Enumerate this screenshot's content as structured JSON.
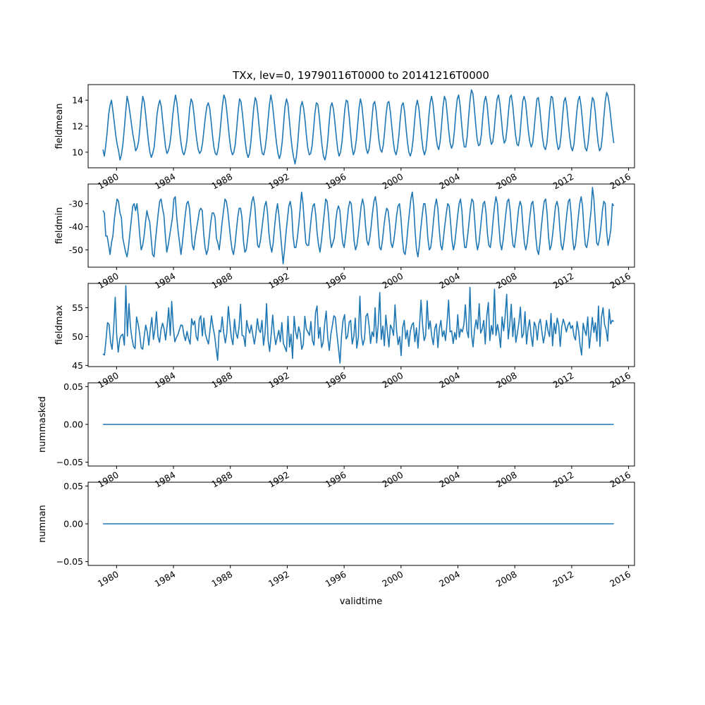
{
  "title": "TXx, lev=0, 19790116T0000 to 20141216T0000",
  "xlabel": "validtime",
  "line_color": "#1f77b4",
  "chart_data": [
    {
      "type": "line",
      "ylabel": "fieldmean",
      "xlim": [
        "1978-01-01",
        "2016-06-01"
      ],
      "ylim": [
        8.8,
        15.2
      ],
      "yticks": [
        10,
        12,
        14
      ],
      "xticks": [
        "1980",
        "1984",
        "1988",
        "1992",
        "1996",
        "2000",
        "2004",
        "2008",
        "2012",
        "2016"
      ],
      "x_range": [
        "1979-01-16",
        "2014-12-16"
      ],
      "values": [
        10.2,
        9.7,
        10.5,
        11.6,
        12.9,
        13.6,
        14.0,
        13.2,
        12.3,
        11.3,
        10.6,
        10.1,
        9.4,
        9.8,
        10.6,
        11.8,
        13.1,
        14.3,
        13.8,
        13.0,
        12.2,
        11.4,
        10.8,
        10.1,
        10.3,
        10.8,
        11.9,
        13.3,
        14.3,
        13.9,
        12.9,
        11.8,
        10.8,
        10.0,
        9.6,
        9.9,
        10.4,
        11.6,
        12.9,
        13.6,
        14.0,
        13.5,
        12.4,
        11.4,
        10.4,
        9.9,
        10.1,
        10.6,
        11.5,
        12.8,
        13.7,
        14.4,
        13.8,
        12.7,
        11.5,
        10.6,
        10.0,
        9.8,
        10.2,
        10.9,
        12.1,
        13.4,
        14.1,
        13.8,
        12.9,
        11.8,
        10.9,
        10.2,
        9.9,
        10.1,
        10.7,
        11.7,
        12.7,
        13.5,
        13.8,
        13.4,
        12.4,
        11.3,
        10.4,
        9.9,
        9.8,
        10.3,
        11.2,
        12.4,
        13.6,
        14.4,
        14.1,
        13.2,
        12.1,
        11.0,
        10.2,
        9.8,
        10.0,
        10.6,
        11.8,
        13.1,
        14.1,
        13.9,
        13.0,
        11.9,
        10.8,
        10.0,
        9.6,
        9.9,
        10.8,
        12.1,
        13.4,
        14.2,
        13.9,
        12.9,
        11.7,
        10.6,
        9.9,
        9.8,
        10.3,
        11.2,
        12.4,
        13.6,
        14.4,
        13.8,
        12.8,
        11.7,
        10.7,
        9.9,
        9.5,
        9.9,
        10.8,
        12.2,
        13.5,
        14.1,
        13.7,
        12.5,
        11.3,
        10.3,
        9.6,
        9.1,
        9.7,
        10.8,
        12.3,
        13.5,
        13.9,
        13.4,
        12.5,
        11.3,
        10.3,
        9.8,
        9.9,
        10.5,
        11.7,
        13.0,
        13.8,
        13.7,
        12.8,
        11.6,
        10.5,
        9.7,
        9.4,
        9.9,
        10.9,
        12.3,
        13.5,
        13.8,
        13.3,
        12.3,
        11.2,
        10.2,
        9.7,
        10.0,
        10.8,
        12.0,
        13.3,
        14.0,
        13.9,
        12.8,
        11.5,
        10.4,
        9.8,
        10.1,
        10.9,
        12.1,
        13.4,
        14.1,
        13.6,
        12.5,
        11.3,
        10.3,
        9.9,
        10.2,
        11.1,
        12.5,
        13.7,
        13.9,
        13.2,
        12.0,
        10.9,
        10.2,
        10.0,
        10.5,
        11.6,
        12.9,
        13.8,
        13.9,
        13.1,
        12.0,
        10.9,
        10.1,
        9.8,
        10.3,
        11.3,
        12.6,
        13.6,
        13.8,
        13.1,
        11.9,
        10.8,
        10.0,
        9.7,
        10.1,
        11.0,
        12.3,
        13.5,
        14.0,
        13.4,
        12.3,
        11.1,
        10.2,
        9.8,
        10.2,
        11.3,
        12.7,
        13.8,
        14.3,
        13.7,
        12.5,
        11.3,
        10.5,
        10.2,
        10.8,
        12.1,
        13.5,
        14.3,
        14.0,
        12.9,
        11.7,
        10.7,
        10.3,
        10.6,
        11.6,
        13.0,
        14.1,
        14.4,
        13.6,
        12.3,
        11.1,
        10.4,
        10.4,
        11.2,
        12.7,
        14.0,
        14.8,
        14.5,
        13.4,
        12.1,
        11.0,
        10.5,
        10.6,
        11.4,
        12.8,
        13.9,
        14.3,
        13.7,
        12.4,
        11.2,
        10.6,
        10.8,
        11.7,
        13.0,
        14.1,
        14.4,
        13.7,
        12.6,
        11.4,
        10.7,
        10.9,
        11.8,
        13.1,
        14.2,
        14.4,
        13.6,
        12.4,
        11.3,
        10.6,
        10.5,
        11.2,
        12.6,
        13.9,
        14.3,
        13.9,
        12.8,
        11.6,
        10.8,
        10.4,
        10.7,
        11.7,
        13.0,
        14.1,
        14.2,
        13.4,
        12.2,
        11.1,
        10.4,
        10.2,
        10.7,
        11.9,
        13.3,
        14.3,
        14.2,
        13.2,
        11.9,
        10.8,
        10.2,
        10.4,
        11.3,
        12.7,
        13.9,
        14.2,
        13.5,
        12.3,
        11.2,
        10.4,
        10.1,
        10.6,
        11.8,
        13.1,
        14.0,
        14.3,
        13.6,
        12.4,
        11.2,
        10.3,
        10.1,
        10.7,
        11.9,
        13.3,
        14.2,
        14.0,
        13.1,
        11.8,
        10.7,
        10.1,
        10.3,
        11.2,
        12.6,
        13.9,
        14.6,
        14.3,
        13.6,
        12.6,
        11.6,
        10.7
      ]
    },
    {
      "type": "line",
      "ylabel": "fieldmin",
      "xlim": [
        "1978-01-01",
        "2016-06-01"
      ],
      "ylim": [
        -57.5,
        -21.5
      ],
      "yticks": [
        -50,
        -40,
        -30
      ],
      "xticks": [
        "1980",
        "1984",
        "1988",
        "1992",
        "1996",
        "2000",
        "2004",
        "2008",
        "2012",
        "2016"
      ],
      "x_range": [
        "1979-01-16",
        "2014-12-16"
      ],
      "values": [
        -33,
        -34,
        -44,
        -44,
        -48,
        -52,
        -47,
        -44,
        -37,
        -32,
        -28,
        -29,
        -34,
        -36,
        -45,
        -48,
        -51,
        -53,
        -49,
        -43,
        -37,
        -31,
        -30,
        -33,
        -30,
        -36,
        -44,
        -50,
        -48,
        -44,
        -38,
        -33,
        -36,
        -38,
        -45,
        -52,
        -53,
        -46,
        -40,
        -34,
        -29,
        -28,
        -32,
        -35,
        -44,
        -51,
        -48,
        -44,
        -40,
        -36,
        -28,
        -27,
        -36,
        -42,
        -47,
        -52,
        -47,
        -41,
        -35,
        -30,
        -29,
        -32,
        -40,
        -48,
        -50,
        -45,
        -41,
        -37,
        -33,
        -32,
        -33,
        -43,
        -49,
        -52,
        -50,
        -44,
        -38,
        -34,
        -34,
        -36,
        -45,
        -47,
        -50,
        -44,
        -38,
        -33,
        -28,
        -29,
        -33,
        -39,
        -45,
        -50,
        -52,
        -48,
        -42,
        -36,
        -32,
        -32,
        -36,
        -46,
        -51,
        -50,
        -45,
        -39,
        -34,
        -29,
        -27,
        -31,
        -40,
        -48,
        -49,
        -46,
        -41,
        -36,
        -31,
        -29,
        -34,
        -43,
        -48,
        -51,
        -47,
        -40,
        -34,
        -30,
        -35,
        -42,
        -49,
        -56,
        -50,
        -43,
        -37,
        -31,
        -29,
        -33,
        -44,
        -49,
        -49,
        -45,
        -39,
        -32,
        -25,
        -30,
        -39,
        -47,
        -48,
        -48,
        -41,
        -35,
        -31,
        -30,
        -35,
        -43,
        -48,
        -51,
        -46,
        -40,
        -34,
        -28,
        -29,
        -35,
        -44,
        -49,
        -47,
        -45,
        -38,
        -33,
        -31,
        -33,
        -41,
        -47,
        -49,
        -44,
        -38,
        -32,
        -29,
        -30,
        -37,
        -46,
        -50,
        -48,
        -43,
        -37,
        -31,
        -28,
        -31,
        -39,
        -46,
        -48,
        -45,
        -40,
        -34,
        -29,
        -27,
        -31,
        -41,
        -49,
        -50,
        -46,
        -40,
        -35,
        -32,
        -33,
        -39,
        -47,
        -49,
        -46,
        -41,
        -35,
        -31,
        -30,
        -36,
        -45,
        -51,
        -52,
        -47,
        -40,
        -34,
        -28,
        -25,
        -31,
        -42,
        -50,
        -53,
        -48,
        -41,
        -35,
        -30,
        -30,
        -36,
        -45,
        -50,
        -49,
        -44,
        -37,
        -31,
        -28,
        -32,
        -41,
        -48,
        -50,
        -45,
        -39,
        -34,
        -30,
        -31,
        -38,
        -46,
        -50,
        -47,
        -41,
        -35,
        -30,
        -28,
        -33,
        -43,
        -49,
        -49,
        -44,
        -38,
        -32,
        -28,
        -29,
        -37,
        -46,
        -50,
        -47,
        -41,
        -35,
        -30,
        -29,
        -34,
        -43,
        -48,
        -49,
        -44,
        -37,
        -31,
        -27,
        -30,
        -39,
        -47,
        -50,
        -46,
        -40,
        -34,
        -29,
        -28,
        -33,
        -42,
        -48,
        -49,
        -44,
        -38,
        -32,
        -29,
        -31,
        -40,
        -47,
        -50,
        -47,
        -41,
        -35,
        -30,
        -29,
        -35,
        -44,
        -50,
        -52,
        -47,
        -40,
        -34,
        -29,
        -28,
        -34,
        -44,
        -50,
        -48,
        -43,
        -37,
        -31,
        -29,
        -32,
        -41,
        -48,
        -50,
        -46,
        -40,
        -34,
        -29,
        -28,
        -35,
        -45,
        -50,
        -48,
        -42,
        -36,
        -30,
        -27,
        -31,
        -41,
        -48,
        -49,
        -45,
        -39,
        -33,
        -23,
        -28,
        -38,
        -47,
        -48,
        -45,
        -40,
        -33,
        -29,
        -30,
        -42,
        -48,
        -45,
        -41,
        -30,
        -31
      ]
    },
    {
      "type": "line",
      "ylabel": "fieldmax",
      "xlim": [
        "1978-01-01",
        "2016-06-01"
      ],
      "ylim": [
        44.8,
        59.2
      ],
      "yticks": [
        45,
        50,
        55
      ],
      "xticks": [
        "1980",
        "1984",
        "1988",
        "1992",
        "1996",
        "2000",
        "2004",
        "2008",
        "2012",
        "2016"
      ],
      "x_range": [
        "1979-01-16",
        "2014-12-16"
      ],
      "values": [
        47.0,
        46.8,
        49.3,
        52.4,
        52.1,
        49.0,
        47.8,
        51.3,
        56.8,
        50.3,
        47.3,
        49.6,
        50.2,
        50.4,
        48.5,
        58.8,
        50.1,
        55.7,
        51.6,
        49.7,
        48.3,
        47.9,
        53.4,
        52.2,
        50.5,
        48.1,
        47.8,
        50.1,
        52.0,
        50.8,
        48.5,
        51.4,
        53.3,
        49.5,
        51.3,
        54.3,
        50.0,
        49.0,
        51.2,
        52.3,
        51.3,
        49.4,
        51.9,
        55.0,
        50.2,
        56.1,
        51.5,
        49.1,
        49.8,
        50.3,
        51.2,
        52.0,
        51.9,
        50.2,
        49.3,
        50.9,
        49.6,
        48.7,
        53.1,
        52.0,
        52.7,
        50.0,
        49.3,
        53.0,
        53.6,
        50.1,
        53.2,
        50.5,
        49.5,
        48.7,
        51.2,
        53.6,
        51.6,
        50.2,
        48.0,
        45.9,
        51.1,
        50.8,
        53.4,
        50.6,
        48.9,
        50.6,
        55.2,
        52.3,
        49.8,
        48.6,
        53.0,
        50.7,
        49.7,
        51.7,
        55.6,
        50.2,
        50.1,
        48.3,
        52.8,
        51.4,
        50.6,
        52.0,
        50.3,
        48.7,
        50.4,
        53.1,
        51.2,
        50.7,
        52.8,
        48.5,
        50.6,
        55.7,
        49.4,
        47.4,
        50.3,
        53.7,
        50.5,
        48.6,
        49.9,
        51.1,
        49.1,
        52.4,
        48.8,
        48.1,
        47.4,
        53.5,
        48.2,
        50.4,
        46.2,
        53.5,
        50.9,
        49.6,
        51.7,
        50.6,
        47.8,
        48.6,
        53.5,
        51.3,
        50.8,
        50.2,
        52.6,
        49.3,
        48.5,
        54.1,
        55.3,
        49.7,
        51.6,
        48.1,
        49.0,
        52.3,
        54.4,
        49.8,
        47.6,
        50.3,
        51.9,
        53.6,
        53.3,
        50.4,
        48.0,
        45.4,
        50.1,
        52.8,
        53.8,
        49.6,
        50.1,
        52.5,
        52.8,
        48.7,
        50.0,
        53.2,
        48.0,
        49.9,
        57.0,
        50.2,
        48.5,
        49.6,
        53.5,
        54.0,
        51.9,
        48.8,
        50.8,
        50.0,
        55.0,
        48.9,
        52.1,
        57.6,
        49.5,
        51.8,
        48.4,
        53.7,
        50.8,
        48.2,
        52.0,
        51.4,
        50.2,
        55.5,
        51.1,
        48.6,
        50.0,
        46.7,
        51.6,
        52.8,
        49.6,
        51.1,
        48.3,
        50.9,
        52.0,
        52.4,
        49.1,
        51.5,
        48.0,
        51.9,
        56.3,
        52.0,
        49.3,
        50.1,
        56.2,
        51.3,
        52.7,
        50.1,
        48.6,
        51.4,
        52.2,
        48.1,
        51.5,
        52.8,
        50.0,
        51.0,
        49.3,
        52.4,
        56.3,
        50.8,
        51.0,
        48.8,
        50.7,
        49.5,
        53.8,
        49.9,
        51.3,
        50.8,
        52.1,
        55.5,
        51.0,
        49.8,
        58.5,
        50.4,
        48.2,
        51.3,
        52.9,
        51.3,
        55.7,
        50.6,
        51.3,
        52.8,
        48.7,
        53.6,
        55.9,
        49.3,
        51.9,
        50.4,
        58.2,
        50.2,
        52.1,
        50.5,
        48.1,
        53.4,
        51.0,
        53.5,
        57.3,
        49.6,
        52.0,
        55.6,
        50.0,
        53.2,
        49.0,
        50.6,
        52.5,
        55.1,
        49.8,
        50.5,
        54.3,
        48.7,
        51.5,
        52.9,
        50.1,
        48.3,
        52.5,
        51.8,
        49.4,
        52.2,
        53.0,
        50.9,
        48.9,
        50.3,
        52.8,
        51.0,
        50.0,
        54.0,
        48.4,
        52.3,
        50.5,
        53.2,
        52.0,
        48.3,
        51.7,
        53.0,
        52.1,
        50.8,
        51.9,
        52.5,
        51.4,
        51.9,
        50.1,
        49.4,
        52.6,
        51.0,
        48.5,
        46.8,
        52.3,
        51.1,
        50.2,
        53.4,
        48.0,
        50.4,
        53.3,
        50.7,
        52.4,
        49.2,
        55.3,
        48.3,
        53.4,
        55.0,
        52.1,
        51.2,
        49.2,
        54.7,
        52.2,
        52.8,
        52.6
      ]
    },
    {
      "type": "line",
      "ylabel": "nummasked",
      "xlim": [
        "1978-01-01",
        "2016-06-01"
      ],
      "ylim": [
        -0.055,
        0.055
      ],
      "yticks": [
        -0.05,
        0.0,
        0.05
      ],
      "ytick_labels": [
        "−0.05",
        "0.00",
        "0.05"
      ],
      "xticks": [
        "1980",
        "1984",
        "1988",
        "1992",
        "1996",
        "2000",
        "2004",
        "2008",
        "2012",
        "2016"
      ],
      "x_range": [
        "1979-01-16",
        "2014-12-16"
      ],
      "values": "constant",
      "constant_value": 0.0
    },
    {
      "type": "line",
      "ylabel": "numnan",
      "xlim": [
        "1978-01-01",
        "2016-06-01"
      ],
      "ylim": [
        -0.055,
        0.055
      ],
      "yticks": [
        -0.05,
        0.0,
        0.05
      ],
      "ytick_labels": [
        "−0.05",
        "0.00",
        "0.05"
      ],
      "xticks": [
        "1980",
        "1984",
        "1988",
        "1992",
        "1996",
        "2000",
        "2004",
        "2008",
        "2012",
        "2016"
      ],
      "x_range": [
        "1979-01-16",
        "2014-12-16"
      ],
      "values": "constant",
      "constant_value": 0.0
    }
  ]
}
